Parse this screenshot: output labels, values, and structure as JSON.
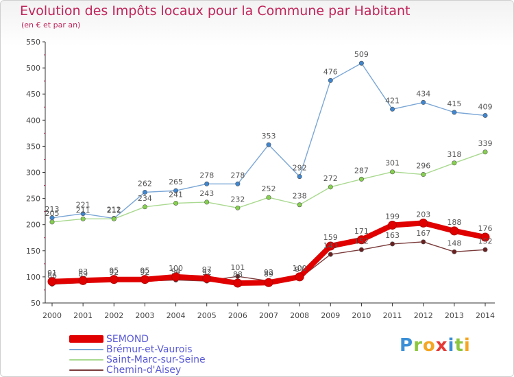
{
  "chart_data": {
    "type": "line",
    "title": "Evolution des Impôts locaux pour la Commune par Habitant",
    "subtitle": "(en € et par an)",
    "xlabel": "",
    "ylabel": "",
    "ylim": [
      50,
      550
    ],
    "yticks": [
      50,
      100,
      150,
      200,
      250,
      300,
      350,
      400,
      450,
      500,
      550
    ],
    "categories": [
      "2000",
      "2001",
      "2002",
      "2003",
      "2004",
      "2005",
      "2006",
      "2007",
      "2008",
      "2009",
      "2010",
      "2011",
      "2012",
      "2013",
      "2014"
    ],
    "series": [
      {
        "name": "SEMOND",
        "color": "#e00000",
        "point_color": "#e00000",
        "width": "thick",
        "values": [
          91,
          93,
          95,
          95,
          100,
          97,
          88,
          89,
          100,
          159,
          171,
          199,
          203,
          188,
          176
        ]
      },
      {
        "name": "Brémur-et-Vaurois",
        "color": "#7aa6d6",
        "point_color": "#3f86d0",
        "width": "thin",
        "values": [
          213,
          221,
          212,
          262,
          265,
          278,
          278,
          353,
          292,
          476,
          509,
          421,
          434,
          415,
          409
        ]
      },
      {
        "name": "Saint-Marc-sur-Seine",
        "color": "#a9d98f",
        "point_color": "#86d14e",
        "width": "thin",
        "values": [
          205,
          211,
          211,
          234,
          241,
          243,
          232,
          252,
          238,
          272,
          287,
          301,
          296,
          318,
          339
        ]
      },
      {
        "name": "Chemin-d'Aisey",
        "color": "#7a3a3a",
        "point_color": "#6b2020",
        "width": "thin",
        "values": [
          86,
          89,
          92,
          92,
          94,
          92,
          101,
          92,
          97,
          143,
          152,
          163,
          167,
          148,
          152
        ]
      }
    ],
    "legend": "bottom-left",
    "grid": false
  },
  "brand": {
    "text": "Proxiti",
    "letters": [
      "P",
      "r",
      "o",
      "x",
      "i",
      "t",
      "i"
    ]
  }
}
